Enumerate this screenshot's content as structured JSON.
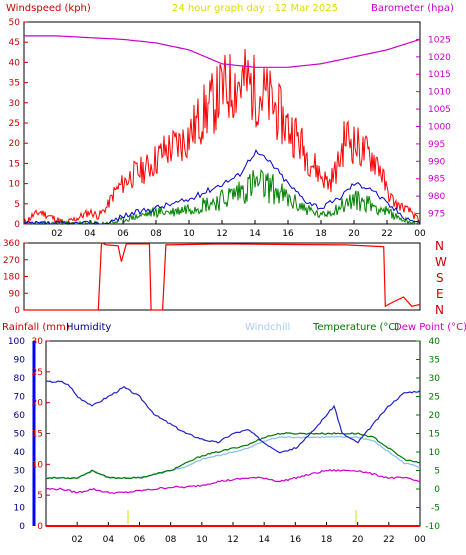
{
  "header": {
    "windspeed_label": "Windspeed (kph)",
    "title": "24 hour graph day : 12 Mar 2025",
    "barometer_label": "Barometer (hpa)"
  },
  "lower_header": {
    "rainfall_label": "Rainfall (mm)",
    "humidity_label": "Humidity",
    "windchill_label": "Windchill",
    "temperature_label": "Temperature (°C)",
    "dewpoint_label": "Dew Point (°C)"
  },
  "compass": [
    "N",
    "W",
    "S",
    "E",
    "N"
  ],
  "colors": {
    "wind": "#dd0000",
    "gust": "#ff0000",
    "avg": "#0000cc",
    "green": "#008000",
    "barometer": "#cc00cc",
    "humidity": "#2222cc",
    "windchill": "#88bbee",
    "temperature": "#007700",
    "dewpoint": "#cc00cc",
    "rain_axis": "#0000ff",
    "rain": "#ff0000"
  },
  "x_ticks": [
    "02",
    "04",
    "06",
    "08",
    "10",
    "12",
    "14",
    "16",
    "18",
    "20",
    "22",
    "00"
  ],
  "chart_data": [
    {
      "type": "line",
      "name": "wind-panel",
      "x_hours": [
        0,
        24
      ],
      "ylim": [
        0,
        50
      ],
      "y_ticks": [
        0,
        5,
        10,
        15,
        20,
        25,
        30,
        35,
        40,
        45,
        50
      ],
      "y2lim": [
        972,
        1030
      ],
      "y2_ticks": [
        975,
        980,
        985,
        990,
        995,
        1000,
        1005,
        1010,
        1015,
        1020,
        1025
      ],
      "series": [
        {
          "key": "gust",
          "x": [
            0,
            0.5,
            1,
            1.5,
            2,
            2.5,
            3,
            3.5,
            4,
            4.5,
            5,
            5.5,
            6,
            6.5,
            7,
            7.5,
            8,
            8.5,
            9,
            9.5,
            10,
            10.5,
            11,
            11.5,
            12,
            12.5,
            13,
            13.5,
            14,
            14.5,
            15,
            15.5,
            16,
            16.5,
            17,
            17.5,
            18,
            18.5,
            19,
            19.5,
            20,
            20.5,
            21,
            21.5,
            22,
            22.5,
            23,
            23.5,
            24
          ],
          "values": [
            0,
            2,
            3,
            2,
            1,
            0,
            1,
            2,
            3,
            2,
            4,
            8,
            10,
            12,
            13,
            14,
            16,
            18,
            19,
            20,
            22,
            25,
            28,
            30,
            33,
            34,
            35,
            35,
            33,
            32,
            30,
            27,
            24,
            22,
            18,
            15,
            12,
            10,
            14,
            22,
            20,
            18,
            17,
            15,
            8,
            5,
            4,
            3,
            0
          ]
        },
        {
          "key": "avg",
          "x": [
            0,
            1,
            2,
            3,
            4,
            5,
            6,
            7,
            8,
            9,
            10,
            11,
            12,
            13,
            14,
            15,
            16,
            17,
            18,
            19,
            20,
            21,
            22,
            23,
            24
          ],
          "values": [
            0,
            0,
            0,
            0,
            0,
            0,
            2,
            3,
            4,
            5,
            6,
            8,
            10,
            12,
            18,
            15,
            10,
            6,
            4,
            6,
            10,
            9,
            5,
            2,
            0
          ]
        },
        {
          "key": "green",
          "x": [
            0,
            1,
            2,
            3,
            4,
            5,
            6,
            7,
            8,
            9,
            10,
            11,
            12,
            13,
            14,
            15,
            16,
            17,
            18,
            19,
            20,
            21,
            22,
            23,
            24
          ],
          "values": [
            0,
            0,
            0,
            0,
            0,
            0,
            1,
            2,
            3,
            3,
            4,
            5,
            6,
            8,
            10,
            9,
            6,
            4,
            2,
            4,
            6,
            5,
            3,
            1,
            0
          ]
        },
        {
          "key": "barometer",
          "x": [
            0,
            2,
            4,
            6,
            8,
            10,
            12,
            14,
            16,
            18,
            20,
            22,
            24
          ],
          "values": [
            1026,
            1026,
            1025.5,
            1025,
            1024,
            1022,
            1018,
            1017,
            1017,
            1018,
            1020,
            1022,
            1025
          ]
        }
      ]
    },
    {
      "type": "line",
      "name": "direction-panel",
      "x_hours": [
        0,
        24
      ],
      "ylim": [
        0,
        360
      ],
      "y_ticks": [
        0,
        90,
        180,
        270,
        360
      ],
      "series": [
        {
          "key": "direction",
          "x": [
            0,
            4.5,
            4.7,
            5.0,
            5.7,
            5.9,
            6.2,
            7.6,
            7.7,
            8.4,
            8.6,
            12,
            16,
            19.5,
            21.8,
            21.9,
            22.3,
            23,
            23.5,
            24
          ],
          "values": [
            0,
            0,
            360,
            350,
            345,
            260,
            355,
            355,
            0,
            0,
            350,
            355,
            352,
            350,
            340,
            20,
            40,
            70,
            20,
            30
          ]
        }
      ]
    },
    {
      "type": "line",
      "name": "weather-panel",
      "x_hours": [
        0,
        24
      ],
      "ylim_humidity": [
        0,
        100
      ],
      "humidity_ticks": [
        0,
        10,
        20,
        30,
        40,
        50,
        60,
        70,
        80,
        90,
        100
      ],
      "ylim_rain": [
        0,
        30
      ],
      "rain_ticks": [
        0,
        5,
        10,
        15,
        20,
        25,
        30
      ],
      "y2lim_temp": [
        -10,
        40
      ],
      "temp_ticks": [
        -10,
        -5,
        0,
        5,
        10,
        15,
        20,
        25,
        30,
        35,
        40
      ],
      "series": [
        {
          "key": "humidity",
          "x": [
            0,
            1,
            1.5,
            2,
            3,
            4,
            5,
            6,
            7,
            8,
            9,
            10,
            11,
            12,
            13,
            14,
            15,
            16,
            17,
            18,
            18.5,
            19,
            20,
            21,
            22,
            23,
            24
          ],
          "values": [
            78,
            78,
            76,
            70,
            65,
            70,
            75,
            70,
            60,
            55,
            50,
            47,
            45,
            50,
            52,
            45,
            40,
            42,
            50,
            60,
            65,
            50,
            45,
            55,
            65,
            72,
            73
          ]
        },
        {
          "key": "temperature",
          "x": [
            0,
            1,
            2,
            3,
            4,
            5,
            6,
            7,
            8,
            9,
            10,
            11,
            12,
            13,
            14,
            15,
            16,
            17,
            18,
            19,
            20,
            21,
            22,
            23,
            24
          ],
          "values": [
            3,
            3,
            3,
            5,
            3,
            3,
            3,
            4,
            5,
            7,
            9,
            10,
            11,
            12,
            14,
            15,
            15,
            15,
            15,
            15,
            15,
            14,
            11,
            8,
            7
          ]
        },
        {
          "key": "windchill",
          "x": [
            0,
            1,
            2,
            3,
            4,
            5,
            6,
            7,
            8,
            9,
            10,
            11,
            12,
            13,
            14,
            15,
            16,
            17,
            18,
            19,
            20,
            21,
            22,
            23,
            24
          ],
          "values": [
            3,
            3,
            3,
            5,
            3,
            3,
            3,
            4,
            5,
            6,
            8,
            9,
            10,
            11,
            13,
            14,
            14,
            14,
            14,
            14,
            14,
            13,
            10,
            7,
            6
          ]
        },
        {
          "key": "dewpoint",
          "x": [
            0,
            1,
            2,
            3,
            4,
            5,
            6,
            7,
            8,
            9,
            10,
            11,
            12,
            13,
            14,
            15,
            16,
            17,
            18,
            19,
            20,
            21,
            22,
            23,
            24
          ],
          "values": [
            0,
            0,
            -1,
            0,
            -1,
            -1,
            -0.5,
            0,
            0.5,
            0.5,
            1,
            2,
            2.5,
            3,
            3,
            2,
            3,
            4,
            5,
            5,
            5,
            4,
            3,
            3,
            2
          ]
        },
        {
          "key": "rain",
          "x": [
            0,
            24
          ],
          "values": [
            0,
            0
          ]
        }
      ]
    }
  ]
}
